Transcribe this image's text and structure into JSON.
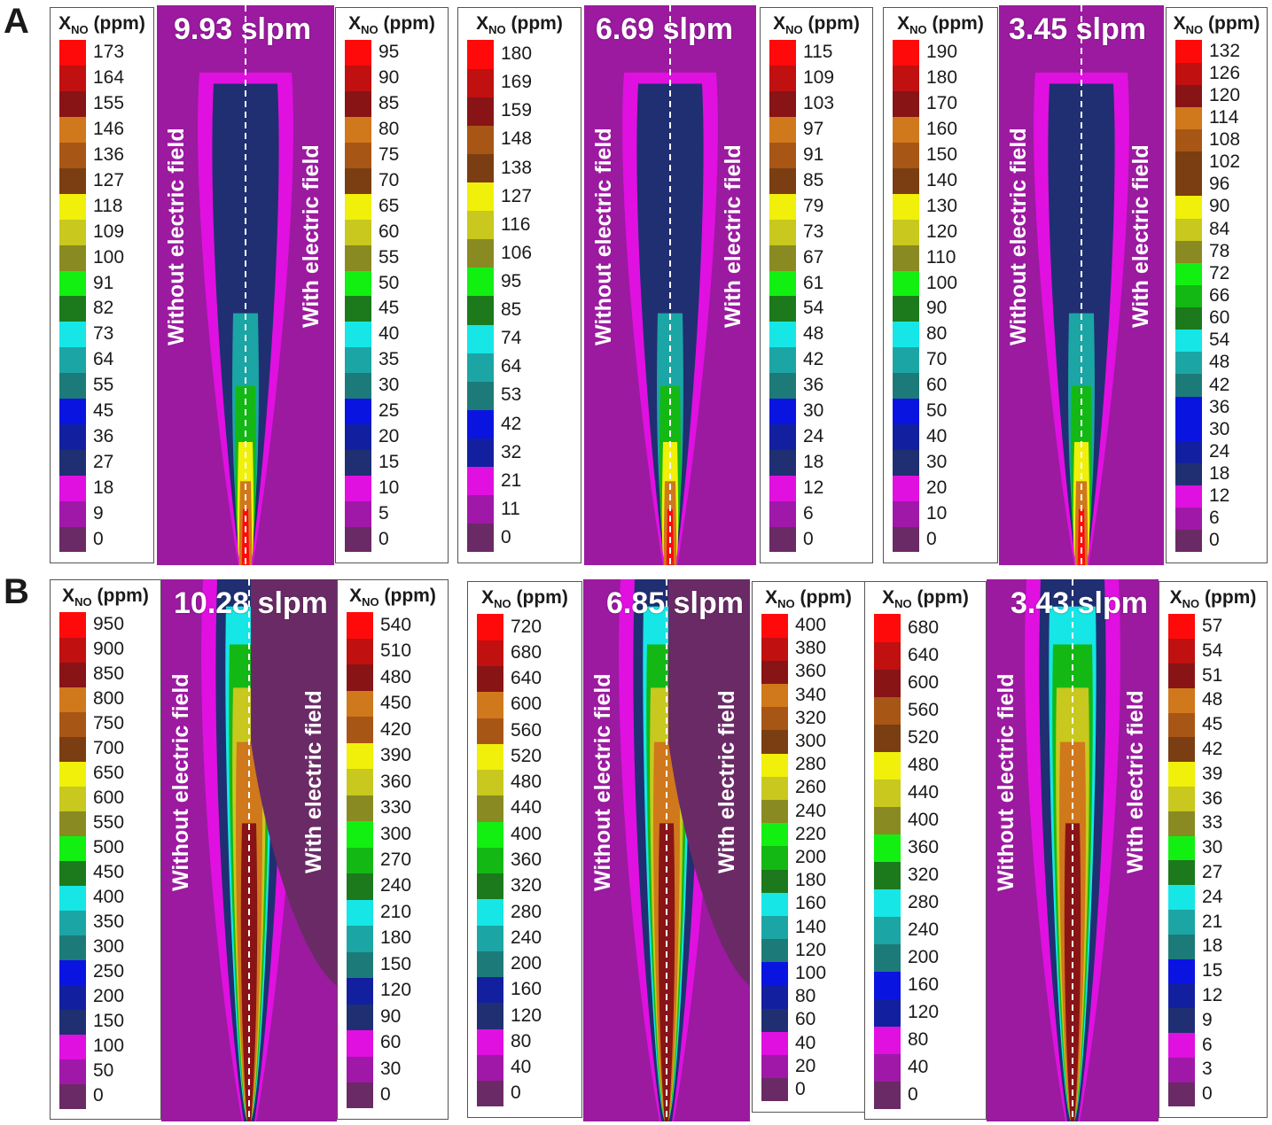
{
  "row_labels": [
    "A",
    "B"
  ],
  "legend_title": {
    "main": "X",
    "sub": "NO",
    "unit": "(ppm)"
  },
  "side_labels": {
    "without": "Without electric field",
    "with": "With electric field"
  },
  "colors": {
    "background": "#9b1aa0",
    "stops": [
      "#6a2a66",
      "#a018a8",
      "#e010e0",
      "#1f2f72",
      "#1220a0",
      "#0a14e0",
      "#1c7b78",
      "#1ca5a5",
      "#16e6e6",
      "#1c7a1c",
      "#14b814",
      "#12f012",
      "#8a8a22",
      "#c8c81e",
      "#f0f00a",
      "#7a3e12",
      "#a85616",
      "#d0781c",
      "#881416",
      "#c01010",
      "#ff0a0a"
    ]
  },
  "panels": [
    {
      "id": "a1",
      "row": "A",
      "flow": "9.93 slpm",
      "flow_word_shape": "tall-narrow",
      "left_ticks": [
        "0",
        "9",
        "18",
        "27",
        "36",
        "45",
        "55",
        "64",
        "73",
        "82",
        "91",
        "100",
        "109",
        "118",
        "127",
        "136",
        "146",
        "155",
        "164",
        "173"
      ],
      "right_ticks": [
        "0",
        "5",
        "10",
        "15",
        "20",
        "25",
        "30",
        "35",
        "40",
        "45",
        "50",
        "55",
        "60",
        "65",
        "70",
        "75",
        "80",
        "85",
        "90",
        "95"
      ]
    },
    {
      "id": "a2",
      "row": "A",
      "flow": "6.69 slpm",
      "left_ticks": [
        "0",
        "11",
        "21",
        "32",
        "42",
        "53",
        "64",
        "74",
        "85",
        "95",
        "106",
        "116",
        "127",
        "138",
        "148",
        "159",
        "169",
        "180"
      ],
      "right_ticks": [
        "0",
        "6",
        "12",
        "18",
        "24",
        "30",
        "36",
        "42",
        "48",
        "54",
        "61",
        "67",
        "73",
        "79",
        "85",
        "91",
        "97",
        "103",
        "109",
        "115"
      ]
    },
    {
      "id": "a3",
      "row": "A",
      "flow": "3.45 slpm",
      "left_ticks": [
        "0",
        "10",
        "20",
        "30",
        "40",
        "50",
        "60",
        "70",
        "80",
        "90",
        "100",
        "110",
        "120",
        "130",
        "140",
        "150",
        "160",
        "170",
        "180",
        "190"
      ],
      "right_ticks": [
        "0",
        "6",
        "12",
        "18",
        "24",
        "30",
        "36",
        "42",
        "48",
        "54",
        "60",
        "66",
        "72",
        "78",
        "84",
        "90",
        "96",
        "102",
        "108",
        "114",
        "120",
        "126",
        "132"
      ]
    },
    {
      "id": "b1",
      "row": "B",
      "flow": "10.28 slpm",
      "left_ticks": [
        "0",
        "50",
        "100",
        "150",
        "200",
        "250",
        "300",
        "350",
        "400",
        "450",
        "500",
        "550",
        "600",
        "650",
        "700",
        "750",
        "800",
        "850",
        "900",
        "950"
      ],
      "right_ticks": [
        "0",
        "30",
        "60",
        "90",
        "120",
        "150",
        "180",
        "210",
        "240",
        "270",
        "300",
        "330",
        "360",
        "390",
        "420",
        "450",
        "480",
        "510",
        "540"
      ]
    },
    {
      "id": "b2",
      "row": "B",
      "flow": "6.85 slpm",
      "left_ticks": [
        "0",
        "40",
        "80",
        "120",
        "160",
        "200",
        "240",
        "280",
        "320",
        "360",
        "400",
        "440",
        "480",
        "520",
        "560",
        "600",
        "640",
        "680",
        "720"
      ],
      "right_ticks": [
        "0",
        "20",
        "40",
        "60",
        "80",
        "100",
        "120",
        "140",
        "160",
        "180",
        "200",
        "220",
        "240",
        "260",
        "280",
        "300",
        "320",
        "340",
        "360",
        "380",
        "400"
      ]
    },
    {
      "id": "b3",
      "row": "B",
      "flow": "3.43 slpm",
      "left_ticks": [
        "0",
        "40",
        "80",
        "120",
        "160",
        "200",
        "240",
        "280",
        "320",
        "360",
        "400",
        "440",
        "480",
        "520",
        "560",
        "600",
        "640",
        "680"
      ],
      "right_ticks": [
        "0",
        "3",
        "6",
        "9",
        "12",
        "15",
        "18",
        "21",
        "24",
        "27",
        "30",
        "33",
        "36",
        "39",
        "42",
        "45",
        "48",
        "51",
        "54",
        "57"
      ]
    }
  ]
}
